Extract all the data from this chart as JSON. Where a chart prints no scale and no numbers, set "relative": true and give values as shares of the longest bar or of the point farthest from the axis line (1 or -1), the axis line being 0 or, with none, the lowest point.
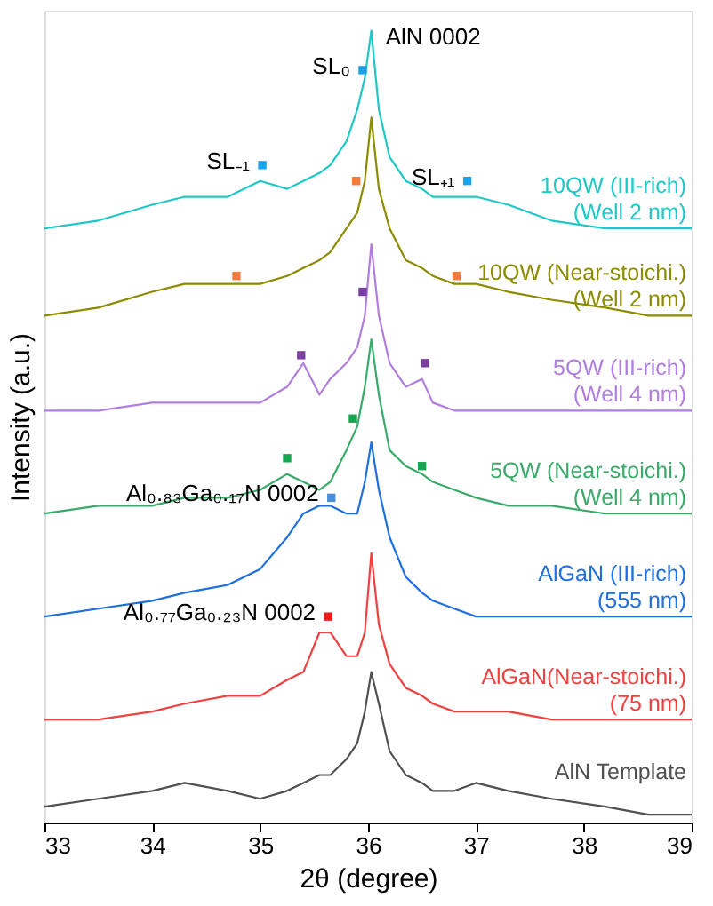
{
  "chart_data": {
    "type": "line",
    "relative": true,
    "xlabel": "2θ (degree)",
    "ylabel": "Intensity (a.u.)",
    "xlim": [
      33,
      39
    ],
    "xticks": [
      33,
      34,
      35,
      36,
      37,
      38,
      39
    ],
    "grid": false,
    "line_style": "solid",
    "marker": "none",
    "x": [
      33,
      33.5,
      34,
      34.3,
      34.7,
      35,
      35.25,
      35.4,
      35.55,
      35.65,
      35.8,
      35.9,
      35.97,
      36.03,
      36.1,
      36.2,
      36.35,
      36.5,
      36.6,
      36.8,
      37,
      37.3,
      37.7,
      38.2,
      38.6,
      39
    ],
    "series": [
      {
        "name": "10QW (III-rich)\n(Well 2 nm)",
        "color": "#1fc7c7",
        "values": [
          0.75,
          0.76,
          0.78,
          0.79,
          0.79,
          0.81,
          0.8,
          0.81,
          0.82,
          0.83,
          0.86,
          0.9,
          0.94,
          1.0,
          0.9,
          0.84,
          0.81,
          0.8,
          0.79,
          0.79,
          0.79,
          0.78,
          0.76,
          0.75,
          0.75,
          0.75
        ]
      },
      {
        "name": "10QW (Near-stoichi.)\n(Well 2 nm)",
        "color": "#8c8c00",
        "values": [
          0.64,
          0.65,
          0.67,
          0.68,
          0.68,
          0.68,
          0.69,
          0.7,
          0.71,
          0.72,
          0.75,
          0.77,
          0.81,
          0.89,
          0.8,
          0.75,
          0.71,
          0.7,
          0.69,
          0.68,
          0.68,
          0.67,
          0.66,
          0.65,
          0.64,
          0.64
        ]
      },
      {
        "name": "5QW (III-rich)\n(Well 4 nm)",
        "color": "#b07ee0",
        "values": [
          0.52,
          0.52,
          0.53,
          0.53,
          0.53,
          0.53,
          0.55,
          0.58,
          0.54,
          0.56,
          0.58,
          0.6,
          0.64,
          0.73,
          0.64,
          0.58,
          0.55,
          0.56,
          0.53,
          0.52,
          0.52,
          0.52,
          0.52,
          0.52,
          0.52,
          0.52
        ]
      },
      {
        "name": "5QW (Near-stoichi.)\n(Well 4 nm)",
        "color": "#3aaa6a",
        "values": [
          0.39,
          0.4,
          0.4,
          0.41,
          0.41,
          0.42,
          0.44,
          0.43,
          0.42,
          0.43,
          0.47,
          0.5,
          0.55,
          0.61,
          0.54,
          0.47,
          0.45,
          0.44,
          0.43,
          0.42,
          0.41,
          0.4,
          0.4,
          0.39,
          0.39,
          0.39
        ]
      },
      {
        "name": "AlGaN (III-rich)\n(555 nm)",
        "color": "#1f6fe0",
        "values": [
          0.26,
          0.27,
          0.28,
          0.29,
          0.3,
          0.32,
          0.36,
          0.39,
          0.4,
          0.4,
          0.39,
          0.39,
          0.43,
          0.48,
          0.42,
          0.36,
          0.31,
          0.29,
          0.28,
          0.27,
          0.26,
          0.26,
          0.26,
          0.26,
          0.26,
          0.26
        ]
      },
      {
        "name": "AlGaN(Near-stoichi.)\n(75 nm)",
        "color": "#f04040",
        "values": [
          0.13,
          0.13,
          0.14,
          0.15,
          0.16,
          0.16,
          0.18,
          0.19,
          0.24,
          0.24,
          0.21,
          0.21,
          0.24,
          0.34,
          0.25,
          0.2,
          0.17,
          0.16,
          0.15,
          0.14,
          0.14,
          0.14,
          0.13,
          0.13,
          0.13,
          0.13
        ]
      },
      {
        "name": "AlN Template",
        "color": "#505050",
        "values": [
          0.02,
          0.03,
          0.04,
          0.05,
          0.04,
          0.03,
          0.04,
          0.05,
          0.06,
          0.06,
          0.08,
          0.1,
          0.14,
          0.19,
          0.15,
          0.09,
          0.06,
          0.05,
          0.04,
          0.04,
          0.05,
          0.04,
          0.03,
          0.02,
          0.01,
          0.01
        ]
      },
      {
        "type": "scatter",
        "marker": "square",
        "x": [
          35.02,
          35.95,
          36.92,
          35.89,
          34.78,
          36.82,
          35.95,
          35.38,
          36.53,
          35.86,
          35.25,
          36.5,
          35.66,
          35.63
        ],
        "values": [
          0.83,
          0.95,
          0.81,
          0.81,
          0.69,
          0.69,
          0.67,
          0.59,
          0.58,
          0.51,
          0.46,
          0.45,
          0.41,
          0.26
        ],
        "colors": [
          "#1aa3e8",
          "#1aa3e8",
          "#1aa3e8",
          "#f07b3b",
          "#f07b3b",
          "#f07b3b",
          "#7a3fa0",
          "#7a3fa0",
          "#7a3fa0",
          "#18a550",
          "#18a550",
          "#18a550",
          "#4a90d8",
          "#f01c1c"
        ]
      }
    ],
    "annotations": [
      {
        "text": "AlN 0002",
        "x": 36.03,
        "y": 1.0
      },
      {
        "text": "SL₀",
        "x": 35.95,
        "y": 0.95
      },
      {
        "text": "SL₋₁",
        "x": 35.02,
        "y": 0.83
      },
      {
        "text": "SL₊₁",
        "x": 36.92,
        "y": 0.81
      },
      {
        "text": "Al₀.₈₃Ga₀.₁₇N 0002",
        "x": 35.66,
        "y": 0.41
      },
      {
        "text": "Al₀.₇₇Ga₀.₂₃N 0002",
        "x": 35.63,
        "y": 0.26
      }
    ]
  }
}
